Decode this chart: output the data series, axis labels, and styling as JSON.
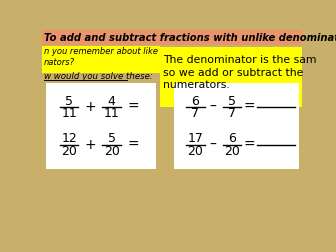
{
  "title": "To add and subtract fractions with unlike denominators",
  "title_bg": "#E8956D",
  "background": "#C8B06A",
  "yellow_bg": "#FFFF00",
  "left_text1": "n you remember about like",
  "left_text2": "nators?",
  "left_text3": "w would you solve these:",
  "frac1_num1": "5",
  "frac1_den1": "11",
  "frac1_num2": "4",
  "frac1_den2": "11",
  "frac2_num1": "12",
  "frac2_den1": "20",
  "frac2_num2": "5",
  "frac2_den2": "20",
  "frac3_num1": "6",
  "frac3_den1": "7",
  "frac3_num2": "5",
  "frac3_den2": "7",
  "frac4_num1": "17",
  "frac4_den1": "20",
  "frac4_num2": "6",
  "frac4_den2": "20"
}
